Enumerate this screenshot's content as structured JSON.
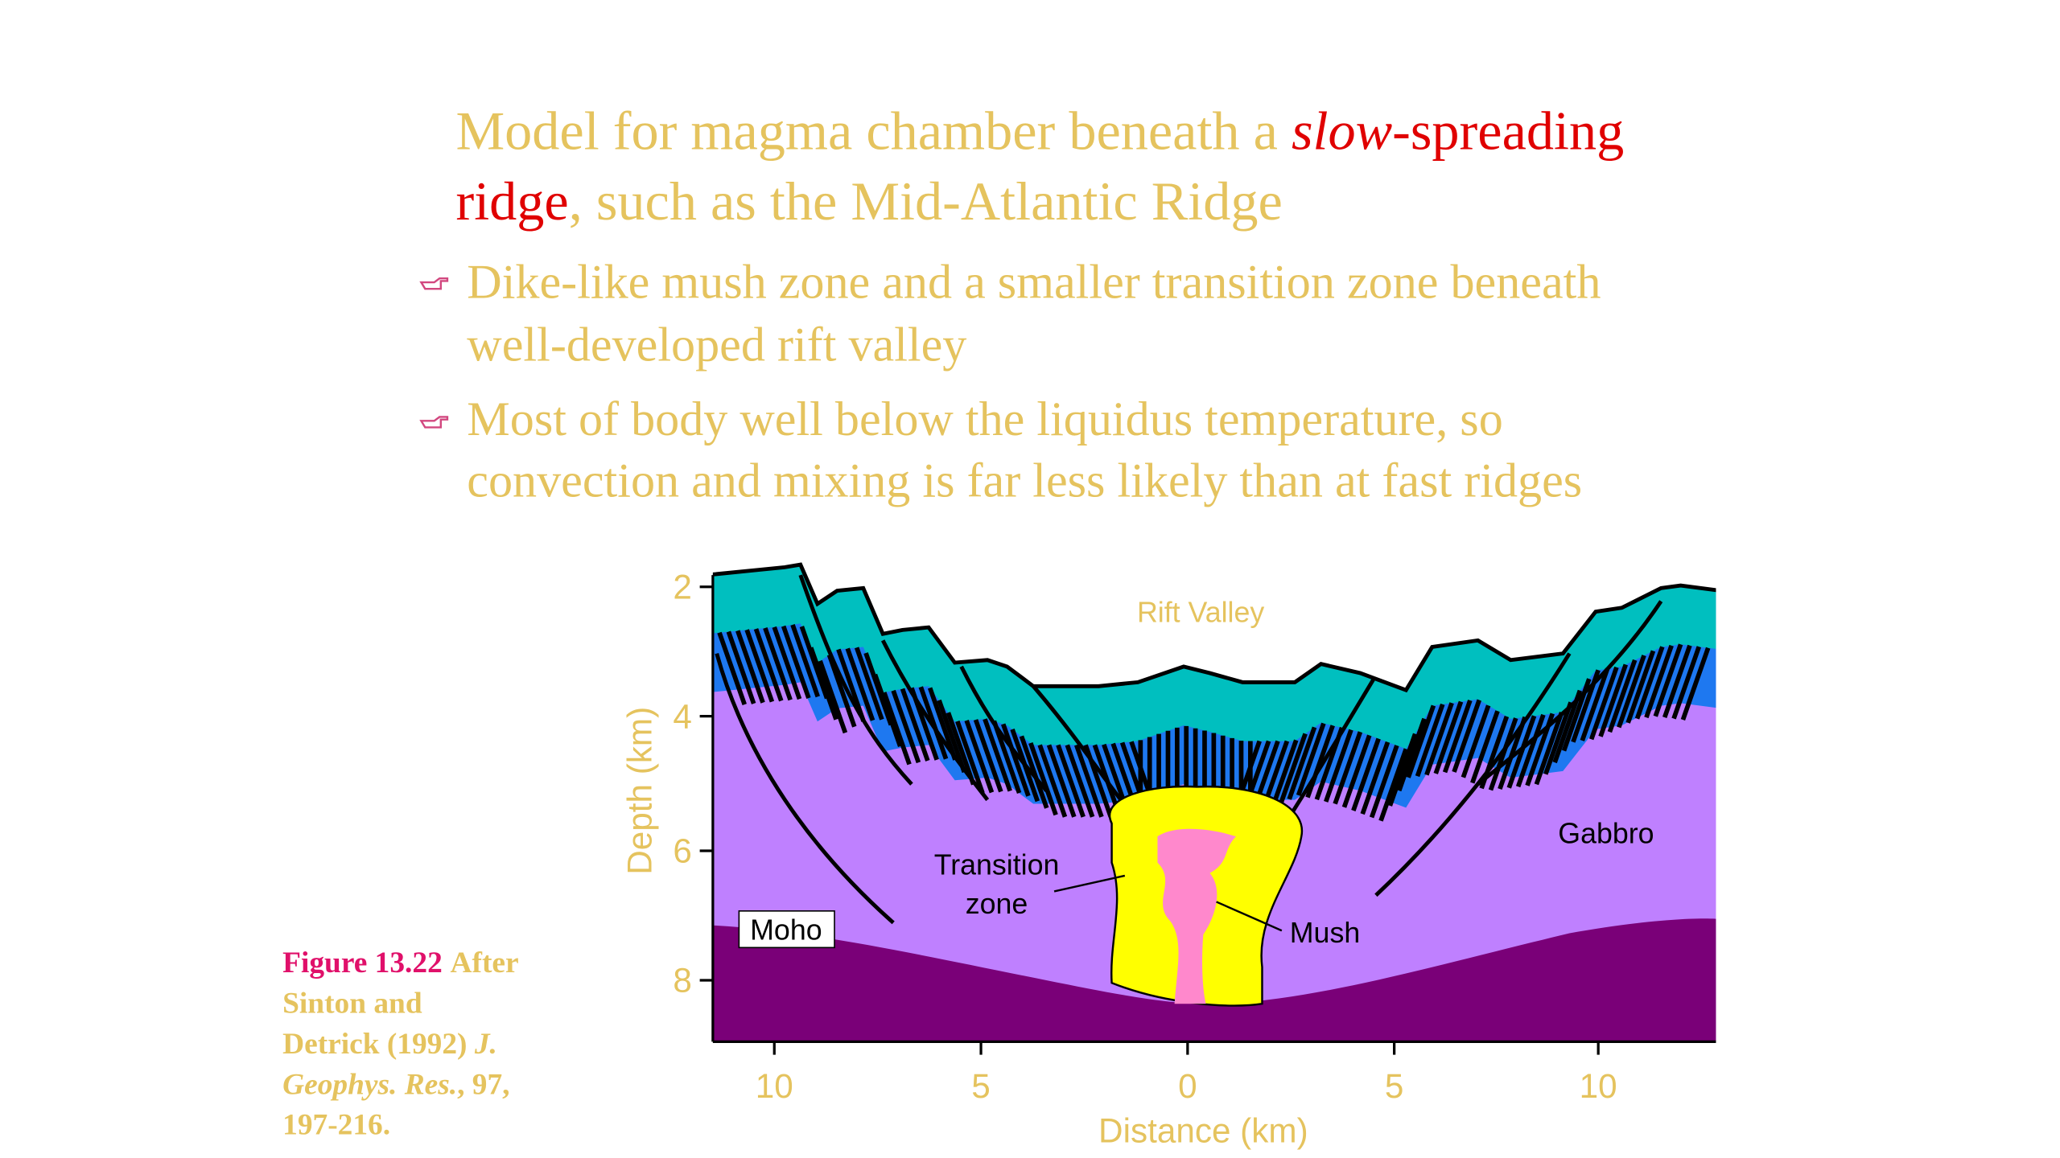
{
  "title": {
    "lines": [
      [
        "Model for magma chamber beneath a ",
        "slow",
        "-spreading"
      ],
      [
        "ridge",
        ", such as the Mid-Atlantic Ridge"
      ]
    ]
  },
  "bullets": [
    [
      "Dike-like mush zone and a smaller transition zone beneath",
      "well-developed rift valley"
    ],
    [
      "Most of body well below the liquidus temperature, so",
      "convection and mixing is far less likely than at fast ridges"
    ]
  ],
  "figure": {
    "y_axis_title": "Depth (km)",
    "x_axis_title": "Distance (km)",
    "y_ticks": [
      "2",
      "4",
      "6",
      "8"
    ],
    "x_ticks": [
      "10",
      "5",
      "0",
      "5",
      "10"
    ],
    "labels": {
      "rift_valley": "Rift Valley",
      "gabbro": "Gabbro",
      "transition": [
        "Transition",
        "zone"
      ],
      "mush": "Mush",
      "moho": "Moho"
    }
  },
  "caption": {
    "label": "Figure 13.22",
    "lines": [
      [
        "After"
      ],
      [
        "Sinton and"
      ],
      [
        "Detrick (1992) ",
        "J."
      ],
      [
        "Geophys. Res.",
        ", 97,"
      ],
      [
        "197-216."
      ]
    ]
  }
}
